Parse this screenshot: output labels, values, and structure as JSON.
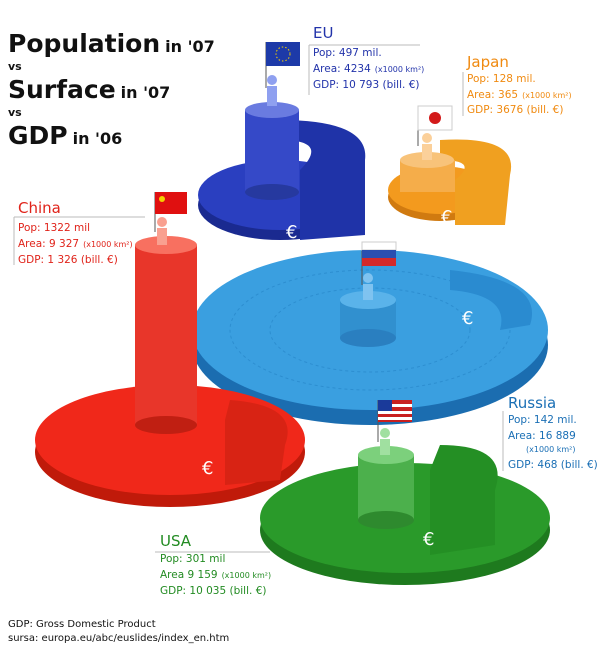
{
  "title": {
    "lines": [
      {
        "main": "Population",
        "sub": "in '07"
      },
      {
        "main": "vs"
      },
      {
        "main": "Surface",
        "sub": "in '07"
      },
      {
        "main": "vs"
      },
      {
        "main": "GDP",
        "sub": "in '06"
      }
    ]
  },
  "regions": [
    {
      "name": "EU",
      "pop": "Pop: 497 mil.",
      "area": "Area: 4234",
      "area_unit": "(x1000 km²)",
      "gdp": "GDP: 10 793 (bill. €)",
      "symbol": "€"
    },
    {
      "name": "Japan",
      "pop": "Pop: 128 mil.",
      "area": "Area: 365",
      "area_unit": "(x1000 km²)",
      "gdp": "GDP: 3676 (bill. €)",
      "symbol": "€"
    },
    {
      "name": "China",
      "pop": "Pop: 1322 mil",
      "area": "Area: 9 327",
      "area_unit": "(x1000 km²)",
      "gdp": "GDP: 1 326 (bill. €)",
      "symbol": "€"
    },
    {
      "name": "Russia",
      "pop": "Pop: 142 mil.",
      "area": "Area: 16 889",
      "area_unit": "(x1000 km²)",
      "gdp": "GDP: 468 (bill. €)",
      "symbol": "€"
    },
    {
      "name": "USA",
      "pop": "Pop: 301 mil",
      "area": "Area 9 159",
      "area_unit": "(x1000 km²)",
      "gdp": "GDP: 10 035 (bill. €)",
      "symbol": "€"
    }
  ],
  "footer": {
    "definition": "GDP: Gross Domestic Product",
    "source": "sursa: europa.eu/abc/euslides/index_en.htm"
  }
}
